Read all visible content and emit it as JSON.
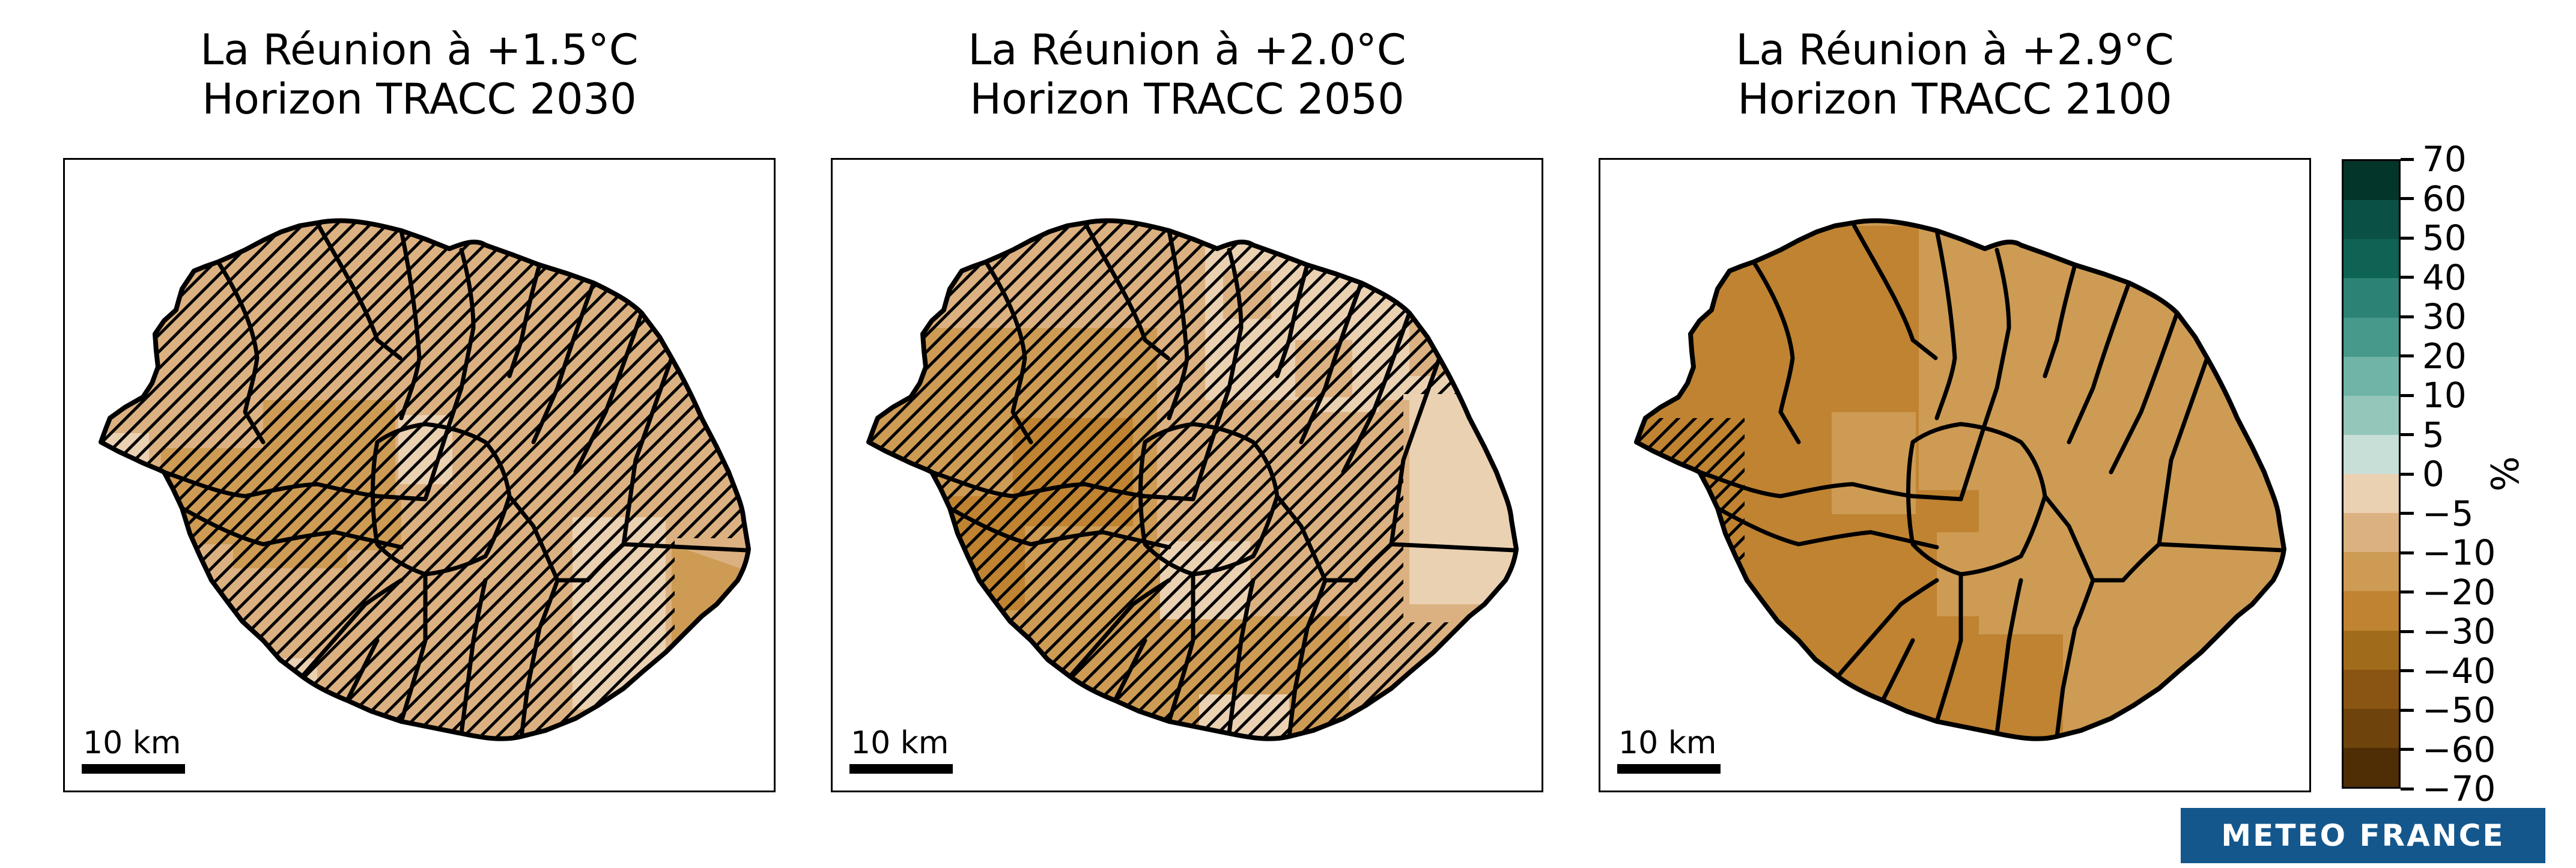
{
  "figure": {
    "background": "#ffffff",
    "description": "Three-panel choropleth map figure of La Réunion island showing projected relative change (%) at three global warming levels, with a diverging brown-teal colorbar and Météo-France logo"
  },
  "panels": [
    {
      "title_line1": "La Réunion à +1.5°C",
      "title_line2": "Horizon TRACC 2030",
      "scalebar_label": "10 km",
      "base_color": "#dcb181",
      "hatch_coverage": "hatching over entire island except far south-east corner"
    },
    {
      "title_line1": "La Réunion à +2.0°C",
      "title_line2": "Horizon TRACC 2050",
      "scalebar_label": "10 km",
      "base_color": "#dcb181",
      "hatch_coverage": "hatching over most of island except far-east region"
    },
    {
      "title_line1": "La Réunion à +2.9°C",
      "title_line2": "Horizon TRACC 2100",
      "scalebar_label": "10 km",
      "base_color": "#cd9b54",
      "hatch_coverage": "small hatched area on west coast only"
    }
  ],
  "map_colors": {
    "minus5_to_0": "#ead1b2",
    "minus10_to_minus5": "#dcb181",
    "minus20_to_minus10": "#cd9b54",
    "minus30_to_minus20": "#bf8331",
    "boundary": "#000000"
  },
  "colorbar": {
    "unit_label": "%",
    "tick_labels": [
      "70",
      "60",
      "50",
      "40",
      "30",
      "20",
      "10",
      "5",
      "0",
      "−5",
      "−10",
      "−20",
      "−30",
      "−40",
      "−50",
      "−60",
      "−70"
    ],
    "segment_colors": [
      "#04352b",
      "#0a5044",
      "#0f6355",
      "#2d8276",
      "#46998b",
      "#6fb4a6",
      "#95c6ba",
      "#c8dfd8",
      "#ead1b2",
      "#dcb181",
      "#cd9b54",
      "#bf8331",
      "#a06c1c",
      "#8a5512",
      "#6f430c",
      "#4f2e06"
    ],
    "border_color": "#000000"
  },
  "logo": {
    "text": "METEO FRANCE",
    "bg_color": "#14578c",
    "text_color": "#ffffff"
  },
  "chart_data": {
    "type": "heatmap",
    "subtype": "choropleth_map_small_multiples",
    "unit": "%",
    "title": "La Réunion projected relative change (%) at +1.5°C, +2.0°C and +2.9°C warming levels",
    "colorbar_ticks": [
      70,
      60,
      50,
      40,
      30,
      20,
      10,
      5,
      0,
      -5,
      -10,
      -20,
      -30,
      -40,
      -50,
      -60,
      -70
    ],
    "colorbar_range": [
      -70,
      70
    ],
    "legend_position": "right",
    "panels": [
      {
        "title": "La Réunion à +1.5°C",
        "subtitle": "Horizon TRACC 2030",
        "dominant_value_bin_pct": [
          -10,
          -5
        ],
        "local_value_bins_pct": [
          [
            -5,
            0
          ],
          [
            -20,
            -10
          ]
        ],
        "hatching": "significance hatching over nearly whole island"
      },
      {
        "title": "La Réunion à +2.0°C",
        "subtitle": "Horizon TRACC 2050",
        "dominant_value_bin_pct": [
          -20,
          -5
        ],
        "local_value_bins_pct": [
          [
            -5,
            0
          ],
          [
            -30,
            -20
          ]
        ],
        "hatching": "hatching over most of island, none on far-east coast"
      },
      {
        "title": "La Réunion à +2.9°C",
        "subtitle": "Horizon TRACC 2100",
        "dominant_value_bin_pct": [
          -30,
          -10
        ],
        "local_value_bins_pct": [
          [
            -20,
            -10
          ],
          [
            -30,
            -20
          ]
        ],
        "hatching": "hatching only on small west-coast area"
      }
    ],
    "scale_bar": "10 km"
  }
}
